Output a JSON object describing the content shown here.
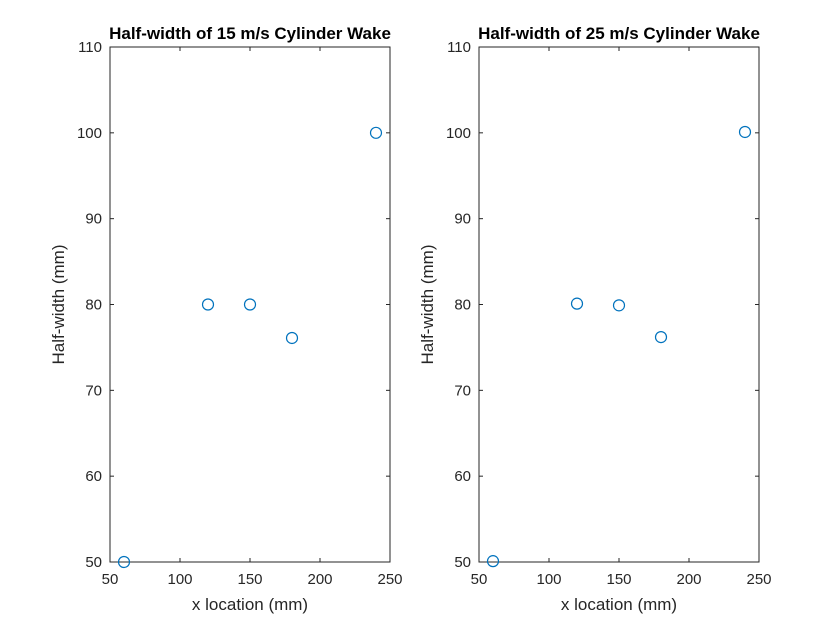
{
  "chart_data": [
    {
      "type": "scatter",
      "title": "Half-width of 15 m/s Cylinder Wake",
      "xlabel": "x location (mm)",
      "ylabel": "Half-width (mm)",
      "xlim": [
        50,
        250
      ],
      "ylim": [
        50,
        110
      ],
      "xticks": [
        "50",
        "100",
        "150",
        "200",
        "250"
      ],
      "yticks": [
        "50",
        "60",
        "70",
        "80",
        "90",
        "100",
        "110"
      ],
      "grid": false,
      "marker": "open-circle",
      "color": "#0072BD",
      "series": [
        {
          "x": [
            60,
            120,
            150,
            180,
            240
          ],
          "y": [
            50,
            80,
            80,
            76.1,
            100
          ]
        }
      ]
    },
    {
      "type": "scatter",
      "title": "Half-width of 25 m/s Cylinder Wake",
      "xlabel": "x location (mm)",
      "ylabel": "Half-width (mm)",
      "xlim": [
        50,
        250
      ],
      "ylim": [
        50,
        110
      ],
      "xticks": [
        "50",
        "100",
        "150",
        "200",
        "250"
      ],
      "yticks": [
        "50",
        "60",
        "70",
        "80",
        "90",
        "100",
        "110"
      ],
      "grid": false,
      "marker": "open-circle",
      "color": "#0072BD",
      "series": [
        {
          "x": [
            60,
            120,
            150,
            180,
            240
          ],
          "y": [
            50.1,
            80.1,
            79.9,
            76.2,
            100.1
          ]
        }
      ]
    }
  ]
}
